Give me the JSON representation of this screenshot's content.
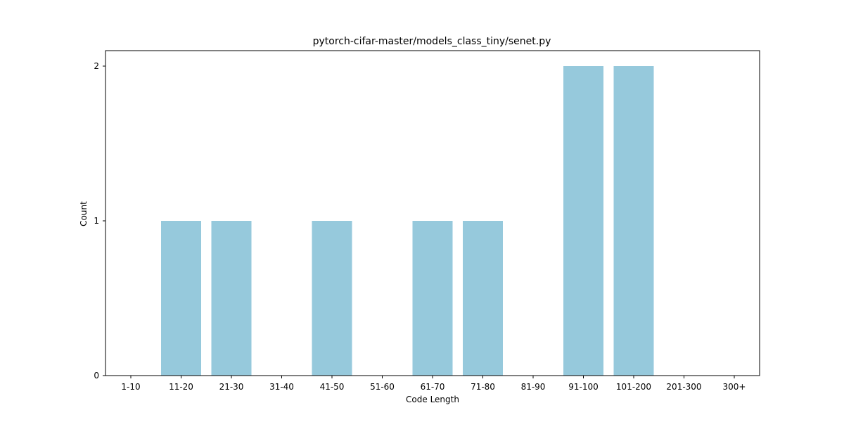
{
  "chart_data": {
    "type": "bar",
    "title": "pytorch-cifar-master/models_class_tiny/senet.py",
    "xlabel": "Code Length",
    "ylabel": "Count",
    "categories": [
      "1-10",
      "11-20",
      "21-30",
      "31-40",
      "41-50",
      "51-60",
      "61-70",
      "71-80",
      "81-90",
      "91-100",
      "101-200",
      "201-300",
      "300+"
    ],
    "values": [
      0,
      1,
      1,
      0,
      1,
      0,
      1,
      1,
      0,
      2,
      2,
      0,
      0
    ],
    "yticks": [
      0,
      1,
      2
    ],
    "ylim": [
      0,
      2.1
    ],
    "grid": false,
    "bar_color": "#96c9dc"
  }
}
